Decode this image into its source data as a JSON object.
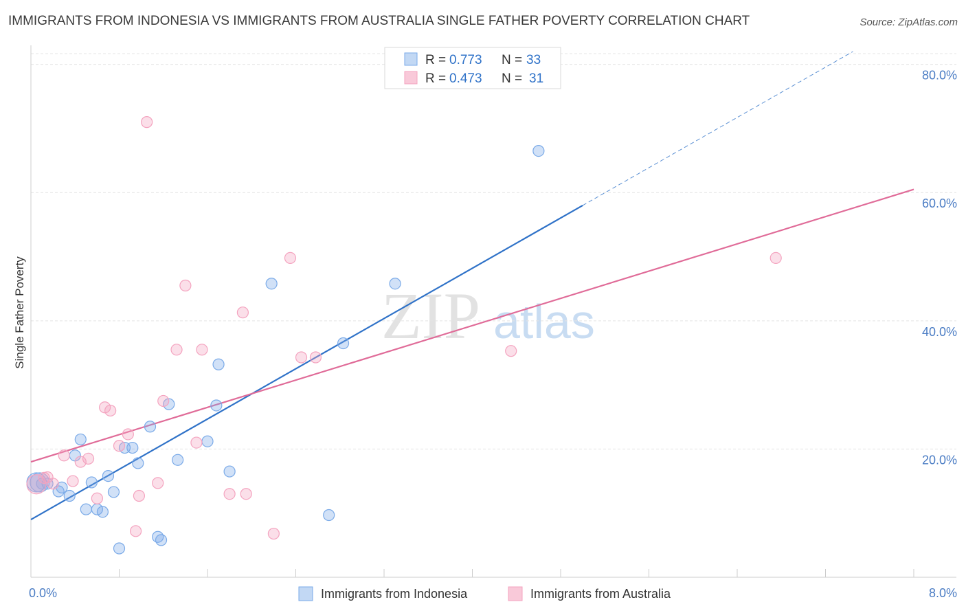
{
  "title": "IMMIGRANTS FROM INDONESIA VS IMMIGRANTS FROM AUSTRALIA SINGLE FATHER POVERTY CORRELATION CHART",
  "source": "Source: ZipAtlas.com",
  "watermark": {
    "zip": "ZIP",
    "atlas": "atlas"
  },
  "chart_data": {
    "type": "scatter",
    "ylabel": "Single Father Poverty",
    "xlim": [
      0.0,
      8.0
    ],
    "ylim": [
      0.0,
      82.0
    ],
    "x_tick_labels": [
      {
        "value": 0.0,
        "label": "0.0%"
      },
      {
        "value": 8.0,
        "label": "8.0%"
      }
    ],
    "y_tick_labels": [
      {
        "value": 20,
        "label": "20.0%"
      },
      {
        "value": 40,
        "label": "40.0%"
      },
      {
        "value": 60,
        "label": "60.0%"
      },
      {
        "value": 80,
        "label": "80.0%"
      }
    ],
    "grid": true,
    "legend_position": "top-center",
    "series": [
      {
        "name": "Immigrants from Indonesia",
        "color": "#7aaae8",
        "line_color": "#2f72c8",
        "R": "0.773",
        "N": "33",
        "trend": {
          "x0": 0.0,
          "y0": 9.0,
          "x1": 5.0,
          "y1": 58.0,
          "dashed_to_x": 9.0,
          "dashed_to_y": 97.2
        },
        "points": [
          [
            0.05,
            14.8
          ],
          [
            0.1,
            14.6
          ],
          [
            0.15,
            14.6
          ],
          [
            0.25,
            13.4
          ],
          [
            0.28,
            14.0
          ],
          [
            0.35,
            12.7
          ],
          [
            0.4,
            19.0
          ],
          [
            0.45,
            21.5
          ],
          [
            0.5,
            10.6
          ],
          [
            0.55,
            14.8
          ],
          [
            0.6,
            10.6
          ],
          [
            0.65,
            10.2
          ],
          [
            0.7,
            15.8
          ],
          [
            0.75,
            13.3
          ],
          [
            0.8,
            4.5
          ],
          [
            0.85,
            20.2
          ],
          [
            0.92,
            20.2
          ],
          [
            0.97,
            17.8
          ],
          [
            1.08,
            23.5
          ],
          [
            1.15,
            6.3
          ],
          [
            1.18,
            5.8
          ],
          [
            1.25,
            27.0
          ],
          [
            1.33,
            18.3
          ],
          [
            1.6,
            21.2
          ],
          [
            1.68,
            26.8
          ],
          [
            1.7,
            33.2
          ],
          [
            1.8,
            16.5
          ],
          [
            2.18,
            45.8
          ],
          [
            2.7,
            9.7
          ],
          [
            2.83,
            36.5
          ],
          [
            3.3,
            45.8
          ],
          [
            4.6,
            66.5
          ],
          [
            0.08,
            14.8
          ]
        ]
      },
      {
        "name": "Immigrants from Australia",
        "color": "#f4a3bf",
        "line_color": "#e06b98",
        "R": "0.473",
        "N": "31",
        "trend": {
          "x0": 0.0,
          "y0": 18.0,
          "x1": 8.0,
          "y1": 60.5
        },
        "points": [
          [
            0.05,
            14.5
          ],
          [
            0.12,
            15.5
          ],
          [
            0.2,
            14.6
          ],
          [
            0.3,
            19.0
          ],
          [
            0.38,
            15.0
          ],
          [
            0.45,
            18.0
          ],
          [
            0.52,
            18.5
          ],
          [
            0.6,
            12.3
          ],
          [
            0.67,
            26.5
          ],
          [
            0.72,
            26.0
          ],
          [
            0.8,
            20.5
          ],
          [
            0.88,
            22.3
          ],
          [
            0.95,
            7.2
          ],
          [
            0.98,
            12.7
          ],
          [
            1.05,
            71.0
          ],
          [
            1.15,
            14.7
          ],
          [
            1.2,
            27.5
          ],
          [
            1.32,
            35.5
          ],
          [
            1.4,
            45.5
          ],
          [
            1.5,
            21.0
          ],
          [
            1.55,
            35.5
          ],
          [
            1.8,
            13.0
          ],
          [
            1.92,
            41.3
          ],
          [
            1.95,
            13.0
          ],
          [
            2.2,
            6.8
          ],
          [
            2.35,
            49.8
          ],
          [
            2.45,
            34.3
          ],
          [
            2.58,
            34.3
          ],
          [
            4.35,
            35.3
          ],
          [
            6.75,
            49.8
          ],
          [
            0.15,
            15.6
          ]
        ]
      }
    ]
  }
}
